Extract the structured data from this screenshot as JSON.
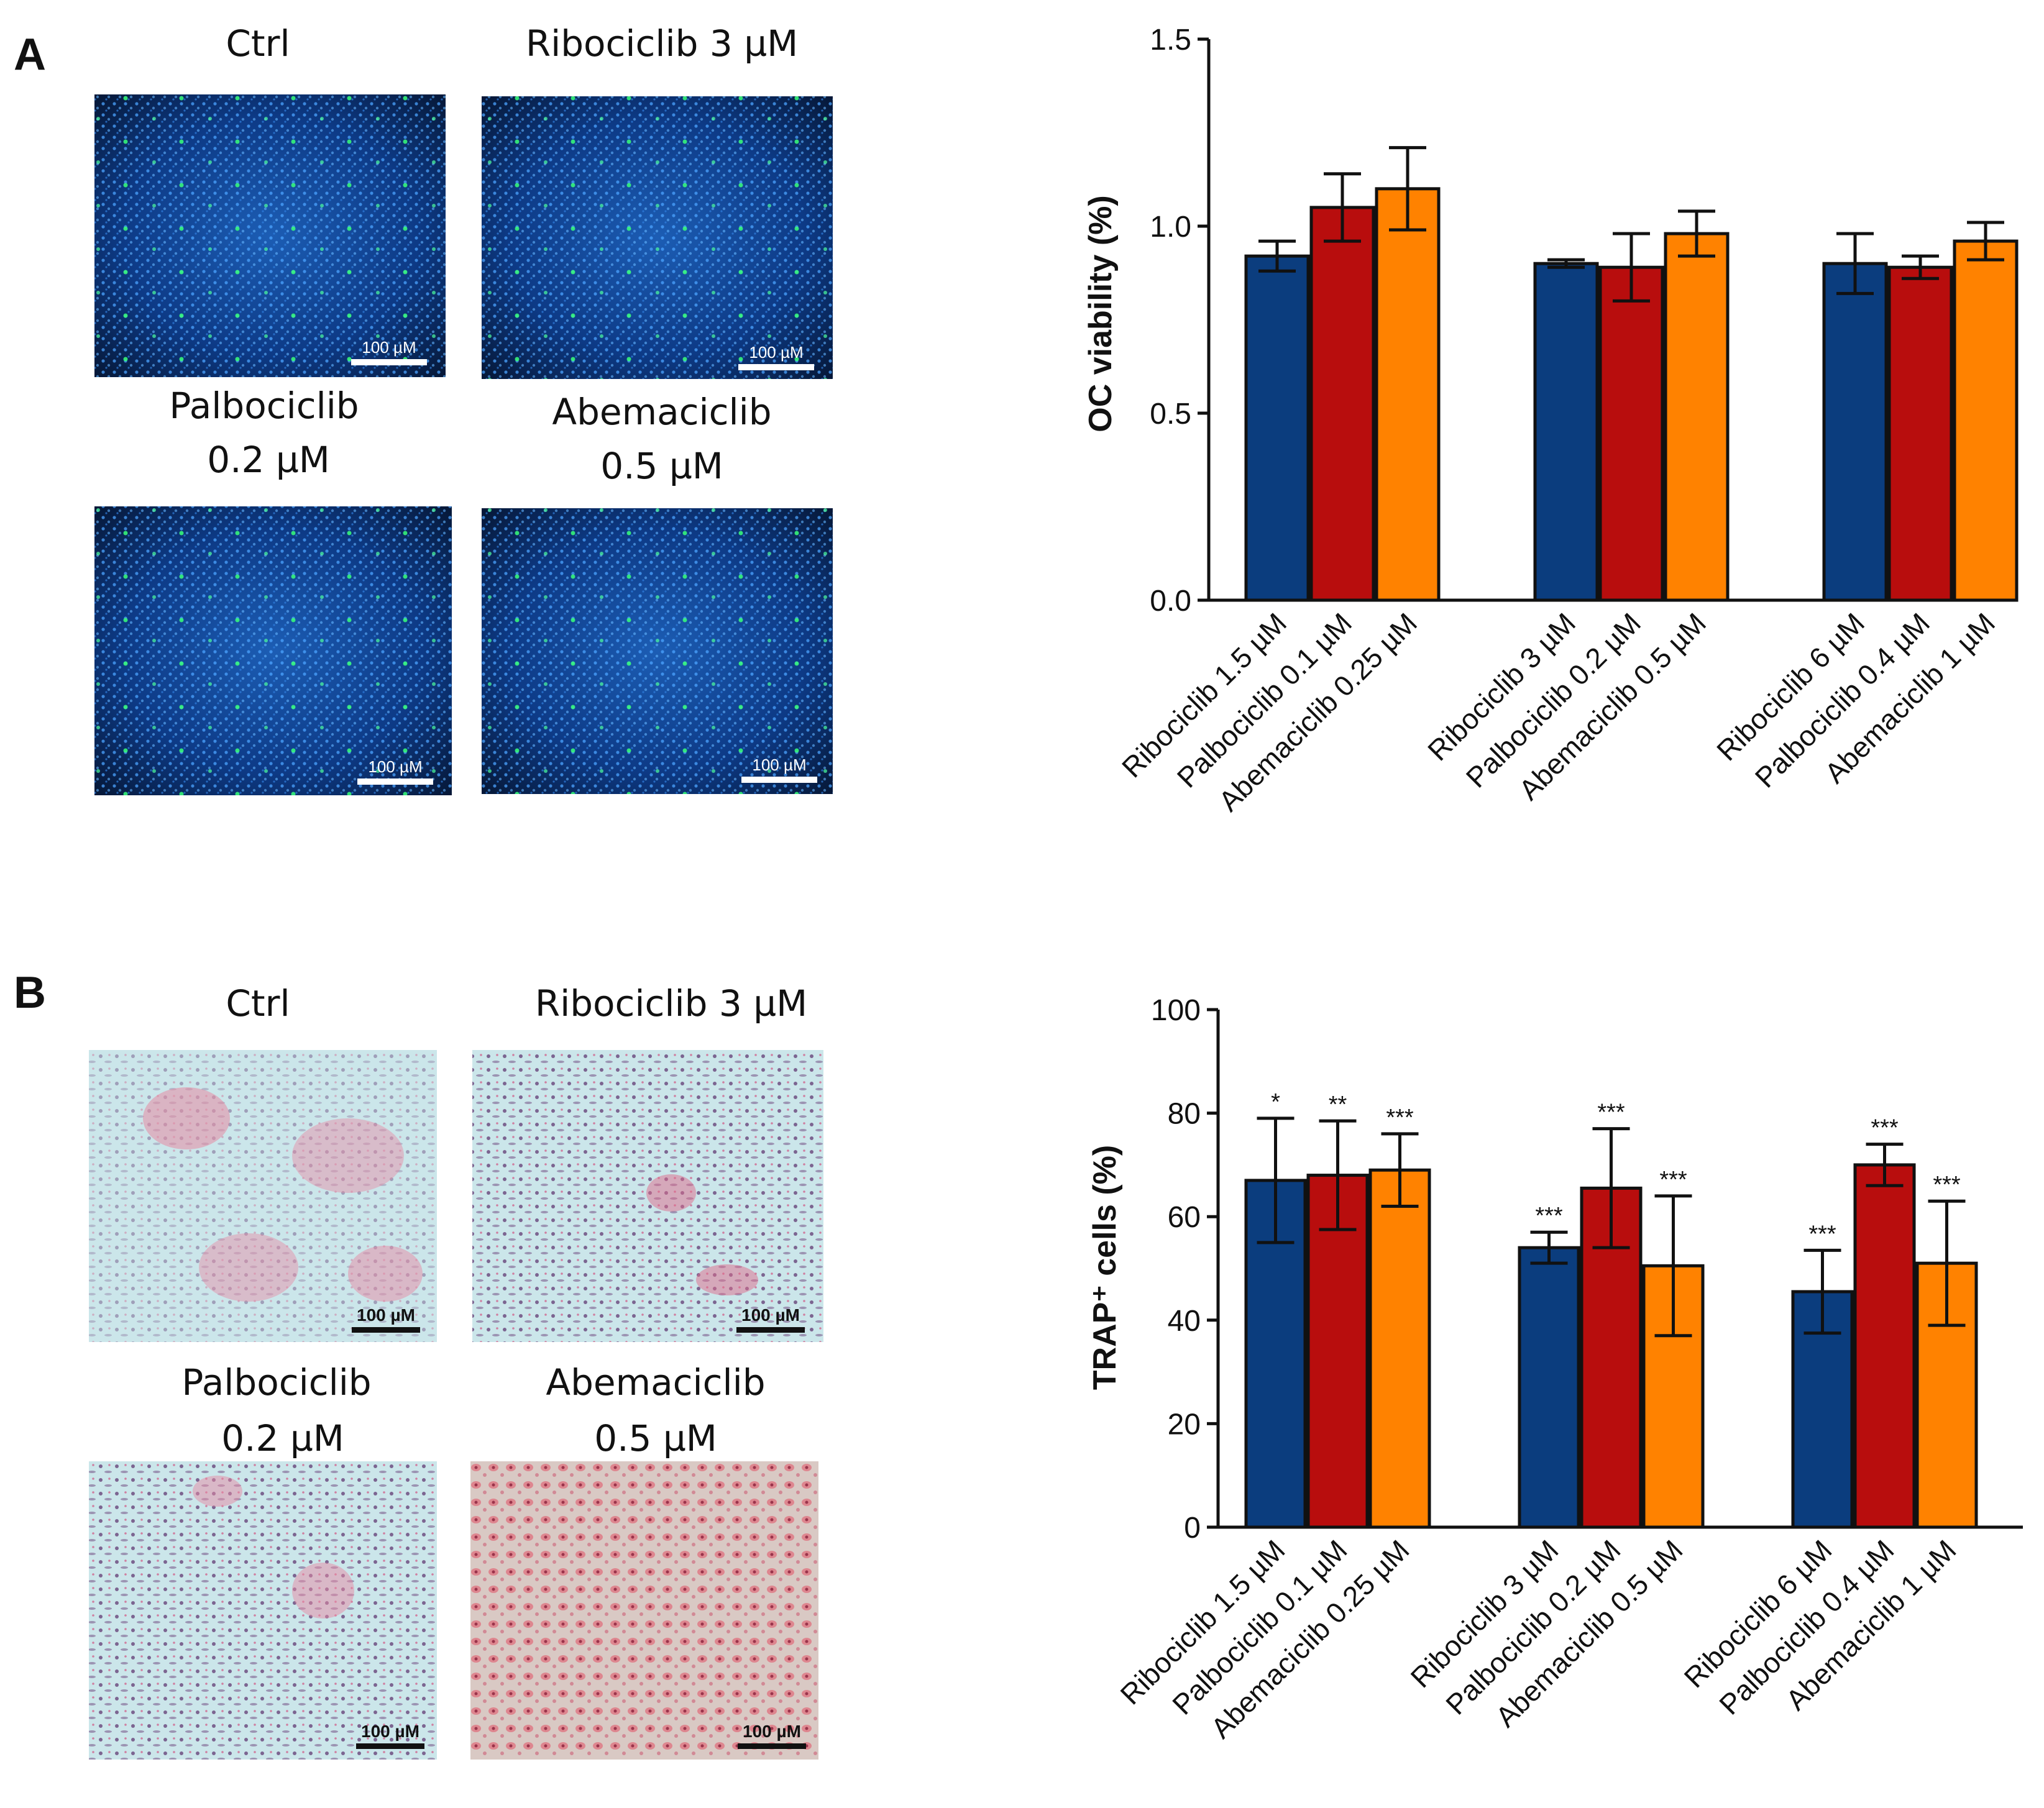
{
  "panels": {
    "A": {
      "letter": "A",
      "images": [
        {
          "label_lines": [
            "Ctrl"
          ],
          "scale": "100 µM"
        },
        {
          "label_lines": [
            "Ribociclib 3 µM"
          ],
          "scale": "100 µM"
        },
        {
          "label_lines": [
            "Palbociclib",
            "0.2 µM"
          ],
          "scale": "100 µM"
        },
        {
          "label_lines": [
            "Abemaciclib",
            "0.5  µM"
          ],
          "scale": "100 µM"
        }
      ]
    },
    "B": {
      "letter": "B",
      "images": [
        {
          "label_lines": [
            "Ctrl"
          ],
          "scale": "100 µM"
        },
        {
          "label_lines": [
            "Ribociclib 3 µM"
          ],
          "scale": "100 µM"
        },
        {
          "label_lines": [
            "Palbociclib",
            "0.2 µM"
          ],
          "scale": "100 µM"
        },
        {
          "label_lines": [
            "Abemaciclib",
            "0.5  µM"
          ],
          "scale": "100 µM"
        }
      ]
    }
  },
  "colors": {
    "ribociclib": "#0b3d7e",
    "palbociclib": "#b80d0d",
    "abemaciclib": "#ff8200",
    "fluor_bg": "#071a3f",
    "stain_bg": "#bfe3e6"
  },
  "chart_data": [
    {
      "type": "bar",
      "panel": "A",
      "title": "",
      "xlabel": "",
      "ylabel": "OC viability (%)",
      "ylim": [
        0,
        1.5
      ],
      "yticks": [
        "0.0",
        "0.5",
        "1.0",
        "1.5"
      ],
      "yticks_values": [
        0,
        0.5,
        1.0,
        1.5
      ],
      "categories": [
        "Ribociclib 1.5 µM",
        "Palbociclib 0.1 µM",
        "Abemaciclib 0.25 µM",
        "Ribociclib 3 µM",
        "Palbociclib 0.2 µM",
        "Abemaciclib 0.5 µM",
        "Ribociclib 6 µM",
        "Palbociclib 0.4 µM",
        "Abemaciclib 1 µM"
      ],
      "groups": [
        3,
        3,
        3
      ],
      "series_colors": [
        "ribociclib",
        "palbociclib",
        "abemaciclib",
        "ribociclib",
        "palbociclib",
        "abemaciclib",
        "ribociclib",
        "palbociclib",
        "abemaciclib"
      ],
      "values": [
        0.92,
        1.05,
        1.1,
        0.9,
        0.89,
        0.98,
        0.9,
        0.89,
        0.96
      ],
      "errors": [
        0.04,
        0.09,
        0.11,
        0.01,
        0.09,
        0.06,
        0.08,
        0.03,
        0.05
      ],
      "significance": [
        "",
        "",
        "",
        "",
        "",
        "",
        "",
        "",
        ""
      ]
    },
    {
      "type": "bar",
      "panel": "B",
      "title": "",
      "xlabel": "",
      "ylabel": "TRAP⁺ cells (%)",
      "ylim": [
        0,
        100
      ],
      "yticks": [
        "0",
        "20",
        "40",
        "60",
        "80",
        "100"
      ],
      "yticks_values": [
        0,
        20,
        40,
        60,
        80,
        100
      ],
      "categories": [
        "Ribociclib 1.5 µM",
        "Palbociclib 0.1 µM",
        "Abemaciclib 0.25 µM",
        "Ribociclib 3 µM",
        "Palbociclib 0.2 µM",
        "Abemaciclib 0.5 µM",
        "Ribociclib 6 µM",
        "Palbociclib 0.4 µM",
        "Abemaciclib 1 µM"
      ],
      "groups": [
        3,
        3,
        3
      ],
      "series_colors": [
        "ribociclib",
        "palbociclib",
        "abemaciclib",
        "ribociclib",
        "palbociclib",
        "abemaciclib",
        "ribociclib",
        "palbociclib",
        "abemaciclib"
      ],
      "values": [
        67,
        68,
        69,
        54,
        65.5,
        50.5,
        45.5,
        70,
        51
      ],
      "errors": [
        12,
        10.5,
        7,
        3,
        11.5,
        13.5,
        8,
        4,
        12
      ],
      "significance": [
        "*",
        "**",
        "***",
        "***",
        "***",
        "***",
        "***",
        "***",
        "***"
      ]
    }
  ]
}
